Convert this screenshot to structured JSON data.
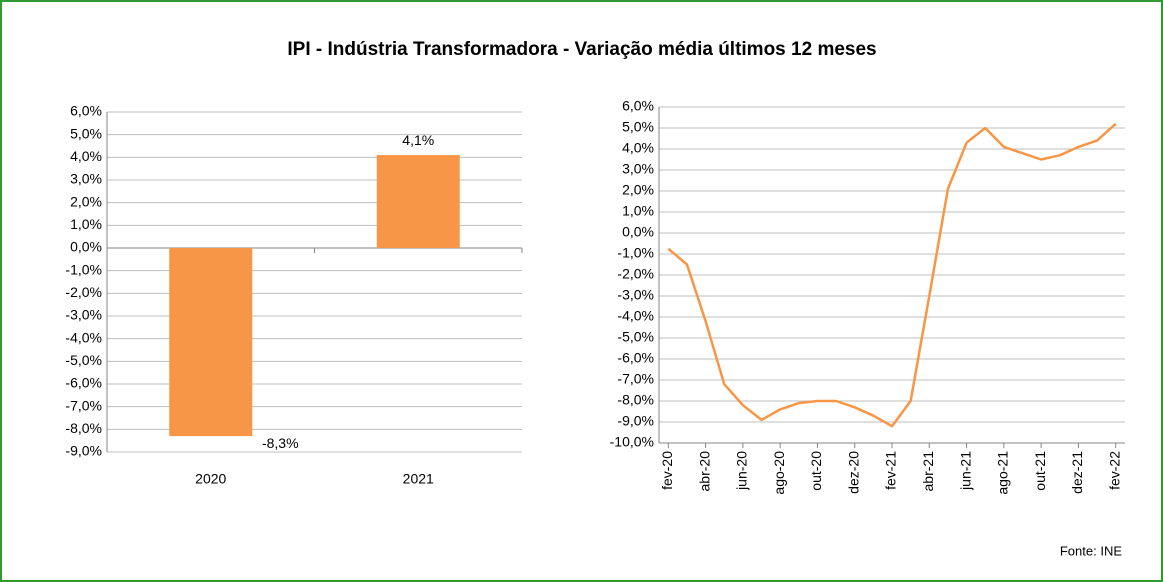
{
  "title": "IPI -  Indústria Transformadora - Variação média últimos 12 meses",
  "source": "Fonte: INE",
  "chart_data": [
    {
      "type": "bar",
      "categories": [
        "2020",
        "2021"
      ],
      "values": [
        -8.3,
        4.1
      ],
      "value_labels": [
        "-8,3%",
        "4,1%"
      ],
      "color": "#f79646",
      "ylim": [
        -9,
        6
      ],
      "grid": true,
      "yticks": [
        {
          "value": -9,
          "label": "-9,0%"
        },
        {
          "value": -8,
          "label": "-8,0%"
        },
        {
          "value": -7,
          "label": "-7,0%"
        },
        {
          "value": -6,
          "label": "-6,0%"
        },
        {
          "value": -5,
          "label": "-5,0%"
        },
        {
          "value": -4,
          "label": "-4,0%"
        },
        {
          "value": -3,
          "label": "-3,0%"
        },
        {
          "value": -2,
          "label": "-2,0%"
        },
        {
          "value": -1,
          "label": "-1,0%"
        },
        {
          "value": 0,
          "label": "0,0%"
        },
        {
          "value": 1,
          "label": "1,0%"
        },
        {
          "value": 2,
          "label": "2,0%"
        },
        {
          "value": 3,
          "label": "3,0%"
        },
        {
          "value": 4,
          "label": "4,0%"
        },
        {
          "value": 5,
          "label": "5,0%"
        },
        {
          "value": 6,
          "label": "6,0%"
        }
      ]
    },
    {
      "type": "line",
      "color": "#f79646",
      "ylim": [
        -10,
        6
      ],
      "grid": true,
      "categories": [
        "fev-20",
        null,
        "abr-20",
        null,
        "jun-20",
        null,
        "ago-20",
        null,
        "out-20",
        null,
        "dez-20",
        null,
        "fev-21",
        null,
        "abr-21",
        null,
        "jun-21",
        null,
        "ago-21",
        null,
        "out-21",
        null,
        "dez-21",
        null,
        "fev-22"
      ],
      "values": [
        -0.75,
        -1.5,
        -4.2,
        -7.2,
        -8.2,
        -8.9,
        -8.4,
        -8.1,
        -8.0,
        -8.0,
        -8.3,
        -8.7,
        -9.2,
        -8.0,
        -3.0,
        2.1,
        4.3,
        5.0,
        4.1,
        3.8,
        3.5,
        3.7,
        4.1,
        4.4,
        5.2
      ],
      "yticks": [
        {
          "value": -10,
          "label": "-10,0%"
        },
        {
          "value": -9,
          "label": "-9,0%"
        },
        {
          "value": -8,
          "label": "-8,0%"
        },
        {
          "value": -7,
          "label": "-7,0%"
        },
        {
          "value": -6,
          "label": "-6,0%"
        },
        {
          "value": -5,
          "label": "-5,0%"
        },
        {
          "value": -4,
          "label": "-4,0%"
        },
        {
          "value": -3,
          "label": "-3,0%"
        },
        {
          "value": -2,
          "label": "-2,0%"
        },
        {
          "value": -1,
          "label": "-1,0%"
        },
        {
          "value": 0,
          "label": "0,0%"
        },
        {
          "value": 1,
          "label": "1,0%"
        },
        {
          "value": 2,
          "label": "2,0%"
        },
        {
          "value": 3,
          "label": "3,0%"
        },
        {
          "value": 4,
          "label": "4,0%"
        },
        {
          "value": 5,
          "label": "5,0%"
        },
        {
          "value": 6,
          "label": "6,0%"
        }
      ]
    }
  ]
}
